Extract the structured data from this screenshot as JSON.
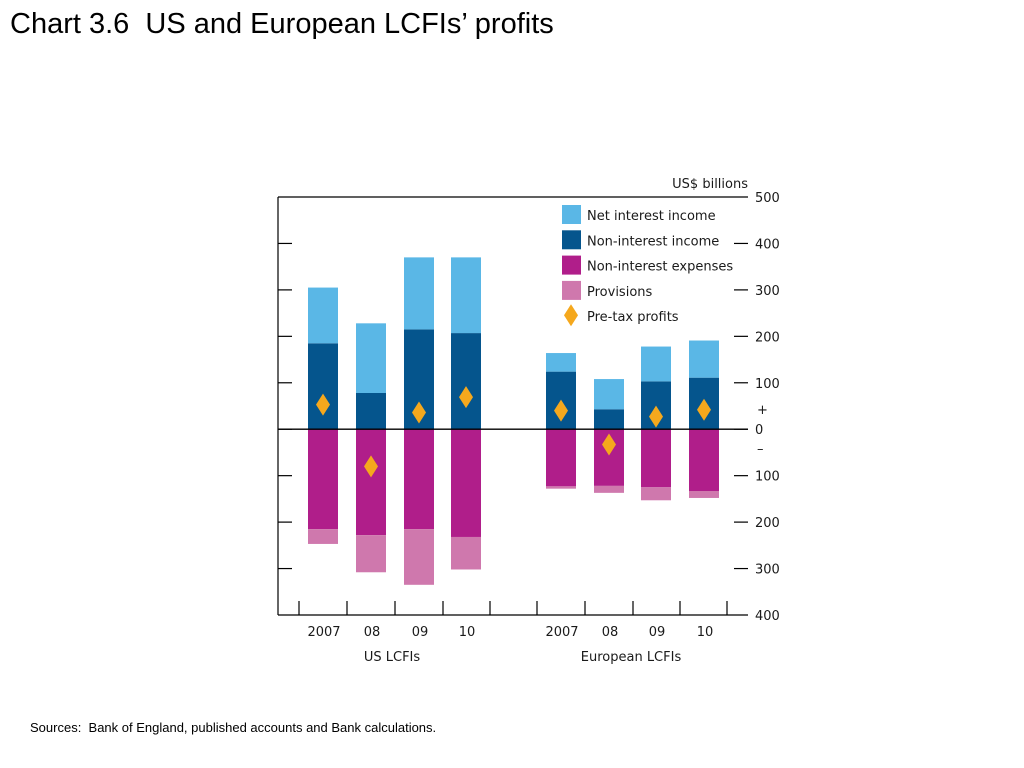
{
  "title": "Chart 3.6  US and European LCFIs’ profits",
  "source": "Sources:  Bank of England, published accounts and Bank calculations.",
  "chart_data": {
    "type": "bar",
    "stacked": true,
    "unit_label": "US$ billions",
    "ylim": [
      -400,
      500
    ],
    "yticks": [
      500,
      400,
      300,
      200,
      100,
      0,
      -100,
      -200,
      -300,
      -400
    ],
    "ytick_labels": [
      "500",
      "400",
      "300",
      "200",
      "100",
      "0",
      "100",
      "200",
      "300",
      "400"
    ],
    "sign_markers": {
      "plus": "+",
      "minus": "–"
    },
    "categories": [
      "2007",
      "08",
      "09",
      "10",
      "2007",
      "08",
      "09",
      "10"
    ],
    "groups": [
      {
        "label": "US LCFIs",
        "categories": [
          "2007",
          "08",
          "09",
          "10"
        ]
      },
      {
        "label": "European LCFIs",
        "categories": [
          "2007",
          "08",
          "09",
          "10"
        ]
      }
    ],
    "series": [
      {
        "name": "Net interest income",
        "color": "#5ab7e6",
        "values": [
          120,
          150,
          155,
          163,
          40,
          65,
          75,
          80
        ]
      },
      {
        "name": "Non-interest income",
        "color": "#05558d",
        "values": [
          185,
          78,
          215,
          207,
          124,
          43,
          103,
          111
        ]
      },
      {
        "name": "Non-interest expenses",
        "color": "#b01e8a",
        "values": [
          -215,
          -228,
          -215,
          -232,
          -123,
          -122,
          -125,
          -133
        ]
      },
      {
        "name": "Provisions",
        "color": "#cf78ad",
        "values": [
          -32,
          -80,
          -120,
          -70,
          -5,
          -15,
          -28,
          -15
        ]
      },
      {
        "name": "Pre-tax profits",
        "color": "#f5a81d",
        "marker": "diamond",
        "values": [
          53,
          -80,
          36,
          69,
          40,
          -33,
          27,
          42
        ]
      }
    ],
    "legend_position": "top-right",
    "grid": false
  }
}
